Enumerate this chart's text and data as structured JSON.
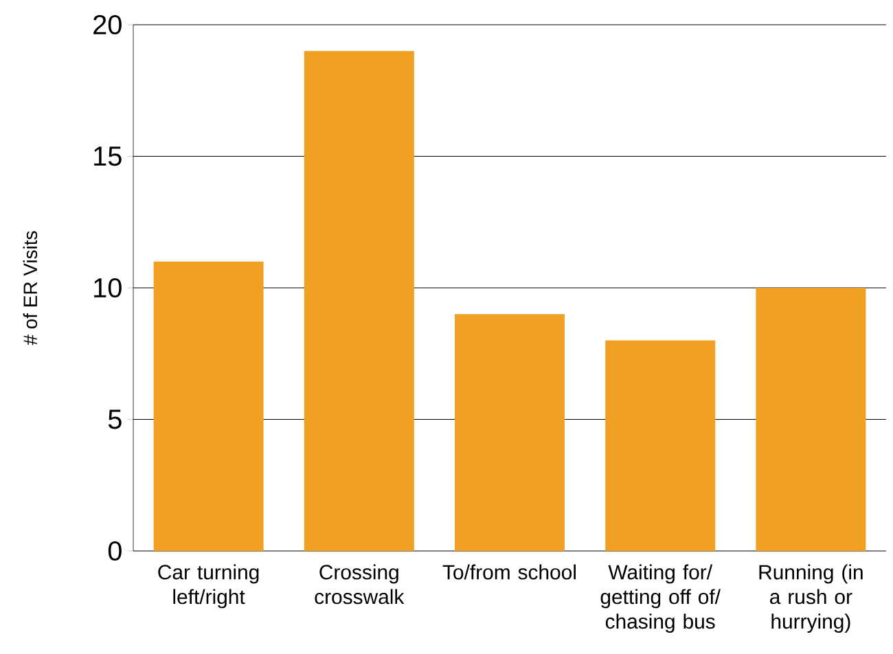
{
  "chart_data": {
    "type": "bar",
    "ylabel": "# of ER Visits",
    "categories": [
      "Car turning left/right",
      "Crossing crosswalk",
      "To/from school",
      "Waiting for/ getting off of/ chasing bus",
      "Running (in a rush or hurrying)"
    ],
    "values": [
      11,
      19,
      9,
      8,
      10
    ],
    "color": "#f0a023",
    "ylim": [
      0,
      20
    ],
    "yticks": [
      0,
      5,
      10,
      15,
      20
    ],
    "grid": "y"
  }
}
